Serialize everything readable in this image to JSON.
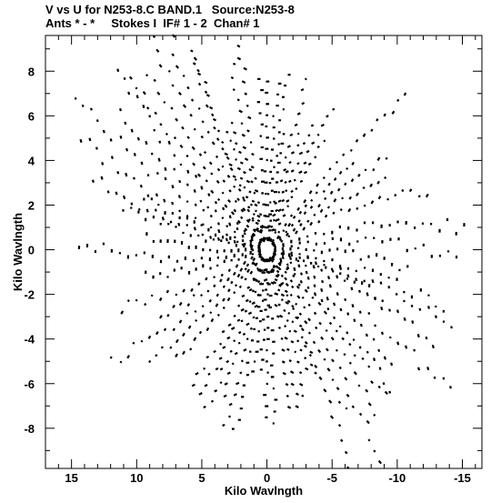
{
  "header": {
    "line1": "V vs U for N253-8.C BAND.1   Source:N253-8",
    "line2": "Ants * - *     Stokes I  IF# 1 - 2  Chan# 1"
  },
  "chart_data": {
    "type": "scatter",
    "title": "V vs U for N253-8.C BAND.1   Source:N253-8",
    "subtitle": "Ants * - *     Stokes I  IF# 1 - 2  Chan# 1",
    "xlabel": "Kilo Wavlngth",
    "ylabel": "Kilo Wavlngth",
    "xlim": [
      17,
      -16.5
    ],
    "ylim": [
      -9.8,
      9.6
    ],
    "x_ticks": [
      15,
      10,
      5,
      0,
      -5,
      -10,
      -15
    ],
    "x_tick_labels": [
      "15",
      "10",
      "5",
      "0",
      "-5",
      "-10",
      "-15"
    ],
    "y_ticks": [
      8,
      6,
      4,
      2,
      0,
      -2,
      -4,
      -6,
      -8
    ],
    "y_tick_labels": [
      "8",
      "6",
      "4",
      "2",
      "0",
      "-2",
      "-4",
      "-6",
      "-8"
    ],
    "grid": false,
    "legend": "none",
    "marker_color": "#000000",
    "spokes": [
      {
        "angle_deg": 16,
        "max_radius": 16.2
      },
      {
        "angle_deg": 40,
        "max_radius": 15.6
      },
      {
        "angle_deg": 62,
        "max_radius": 10.8
      },
      {
        "angle_deg": 92,
        "max_radius": 8.5
      },
      {
        "angle_deg": 118,
        "max_radius": 9.6
      },
      {
        "angle_deg": 150,
        "max_radius": 13.4
      },
      {
        "angle_deg": 178,
        "max_radius": 15.9
      },
      {
        "angle_deg": 196,
        "max_radius": 16.2
      },
      {
        "angle_deg": 220,
        "max_radius": 15.4
      },
      {
        "angle_deg": 242,
        "max_radius": 10.8
      },
      {
        "angle_deg": 272,
        "max_radius": 8.6
      },
      {
        "angle_deg": 298,
        "max_radius": 9.6
      },
      {
        "angle_deg": 330,
        "max_radius": 13.3
      },
      {
        "angle_deg": 358,
        "max_radius": 15.9
      }
    ]
  }
}
